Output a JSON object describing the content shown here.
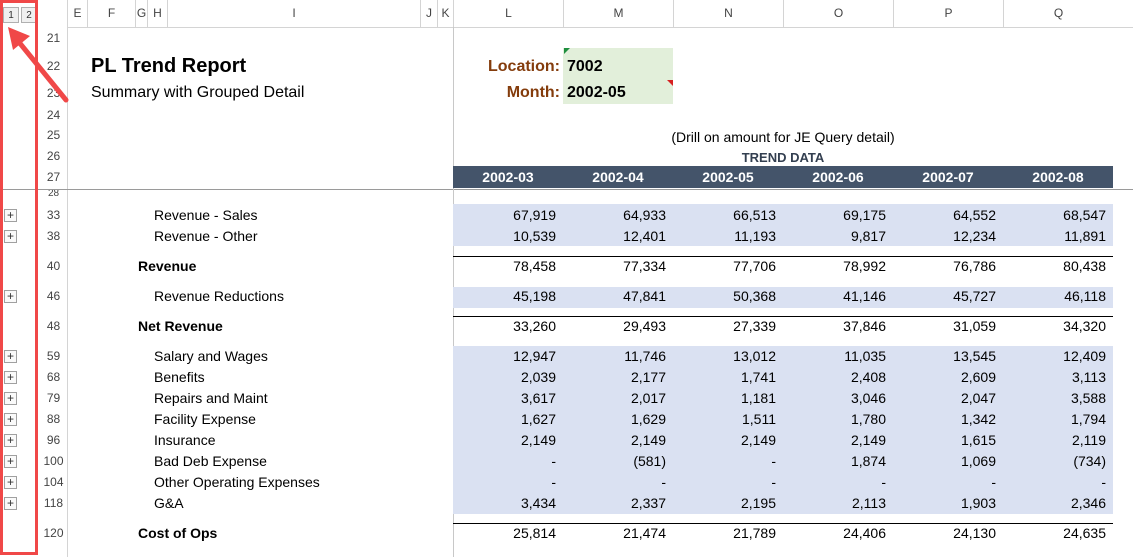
{
  "outline": {
    "levels": [
      "1",
      "2"
    ]
  },
  "columns": [
    {
      "id": "E",
      "label": "E"
    },
    {
      "id": "F",
      "label": "F"
    },
    {
      "id": "G",
      "label": "G"
    },
    {
      "id": "H",
      "label": "H"
    },
    {
      "id": "I",
      "label": "I"
    },
    {
      "id": "J",
      "label": "J"
    },
    {
      "id": "K",
      "label": "K"
    },
    {
      "id": "L",
      "label": "L"
    },
    {
      "id": "M",
      "label": "M"
    },
    {
      "id": "N",
      "label": "N"
    },
    {
      "id": "O",
      "label": "O"
    },
    {
      "id": "P",
      "label": "P"
    },
    {
      "id": "Q",
      "label": "Q"
    }
  ],
  "report": {
    "title": "PL Trend Report",
    "subtitle": "Summary with Grouped Detail",
    "location_label": "Location:",
    "location_value": "7002",
    "month_label": "Month:",
    "month_value": "2002-05",
    "drill_note": "(Drill on amount for JE Query detail)",
    "trend_header": "TREND DATA",
    "periods": [
      "2002-03",
      "2002-04",
      "2002-05",
      "2002-06",
      "2002-07",
      "2002-08"
    ]
  },
  "header_rows": [
    "21",
    "22",
    "23",
    "24",
    "25",
    "26",
    "27",
    "28"
  ],
  "lines": [
    {
      "row": "33",
      "label": "Revenue - Sales",
      "bold": false,
      "values": [
        "67,919",
        "64,933",
        "66,513",
        "69,175",
        "64,552",
        "68,547"
      ]
    },
    {
      "row": "38",
      "label": "Revenue - Other",
      "bold": false,
      "values": [
        "10,539",
        "12,401",
        "11,193",
        "9,817",
        "12,234",
        "11,891"
      ]
    },
    {
      "row": "40",
      "label": "Revenue",
      "bold": true,
      "values": [
        "78,458",
        "77,334",
        "77,706",
        "78,992",
        "76,786",
        "80,438"
      ]
    },
    {
      "row": "46",
      "label": "Revenue Reductions",
      "bold": false,
      "values": [
        "45,198",
        "47,841",
        "50,368",
        "41,146",
        "45,727",
        "46,118"
      ]
    },
    {
      "row": "48",
      "label": "Net Revenue",
      "bold": true,
      "values": [
        "33,260",
        "29,493",
        "27,339",
        "37,846",
        "31,059",
        "34,320"
      ]
    },
    {
      "row": "59",
      "label": "Salary and Wages",
      "bold": false,
      "values": [
        "12,947",
        "11,746",
        "13,012",
        "11,035",
        "13,545",
        "12,409"
      ]
    },
    {
      "row": "68",
      "label": "Benefits",
      "bold": false,
      "values": [
        "2,039",
        "2,177",
        "1,741",
        "2,408",
        "2,609",
        "3,113"
      ]
    },
    {
      "row": "79",
      "label": "Repairs and Maint",
      "bold": false,
      "values": [
        "3,617",
        "2,017",
        "1,181",
        "3,046",
        "2,047",
        "3,588"
      ]
    },
    {
      "row": "88",
      "label": "Facility Expense",
      "bold": false,
      "values": [
        "1,627",
        "1,629",
        "1,511",
        "1,780",
        "1,342",
        "1,794"
      ]
    },
    {
      "row": "96",
      "label": "Insurance",
      "bold": false,
      "values": [
        "2,149",
        "2,149",
        "2,149",
        "2,149",
        "1,615",
        "2,119"
      ]
    },
    {
      "row": "100",
      "label": "Bad Deb Expense",
      "bold": false,
      "values": [
        "-",
        "(581)",
        "-",
        "1,874",
        "1,069",
        "(734)"
      ]
    },
    {
      "row": "104",
      "label": "Other Operating Expenses",
      "bold": false,
      "values": [
        "-",
        "-",
        "-",
        "-",
        "-",
        "-"
      ]
    },
    {
      "row": "118",
      "label": "G&A",
      "bold": false,
      "values": [
        "3,434",
        "2,337",
        "2,195",
        "2,113",
        "1,903",
        "2,346"
      ]
    },
    {
      "row": "120",
      "label": "Cost of Ops",
      "bold": true,
      "values": [
        "25,814",
        "21,474",
        "21,789",
        "24,406",
        "24,130",
        "24,635"
      ]
    }
  ],
  "colors": {
    "accent_red": "#f04848",
    "header_bar": "#44546a",
    "band": "#dae1f2",
    "input_fill": "#e2efda",
    "label_brown": "#843c0c"
  }
}
